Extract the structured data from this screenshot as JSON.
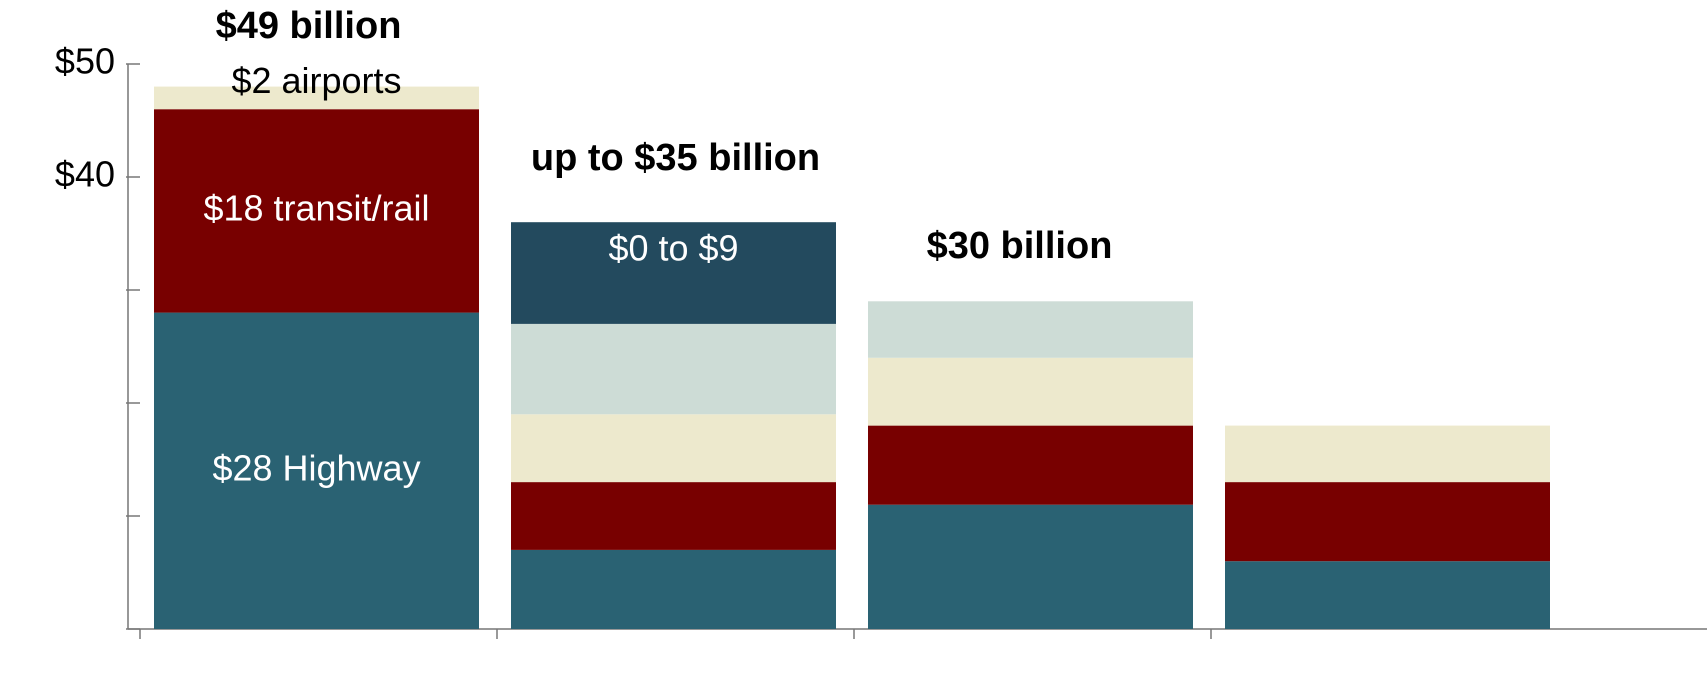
{
  "chart_data": {
    "type": "stacked-bar",
    "categories": [
      null,
      null,
      null,
      null
    ],
    "ylim": [
      0,
      50
    ],
    "yticks": [
      {
        "value": 0,
        "label": null
      },
      {
        "value": 10,
        "label": null
      },
      {
        "value": 20,
        "label": null
      },
      {
        "value": 30,
        "label": null
      },
      {
        "value": 40,
        "label": "$40"
      },
      {
        "value": 50,
        "label": "$50"
      }
    ],
    "series": [
      {
        "color": "#2a6273",
        "values": [
          28,
          7,
          11,
          6
        ],
        "value_labels": [
          "$28 Highway",
          null,
          null,
          null
        ]
      },
      {
        "color": "#780000",
        "values": [
          18,
          6,
          7,
          7
        ],
        "value_labels": [
          "$18 transit/rail",
          null,
          null,
          null
        ]
      },
      {
        "color": "#ede9cd",
        "values": [
          2,
          6,
          6,
          5
        ],
        "value_labels": [
          "$2 airports",
          null,
          null,
          null
        ]
      },
      {
        "color": "#cddcd6",
        "values": [
          null,
          8,
          5,
          null
        ]
      },
      {
        "color": "#234a5e",
        "values": [
          null,
          9,
          null,
          null
        ],
        "value_labels": [
          null,
          "$0 to $9",
          null,
          null
        ]
      }
    ],
    "annotations": [
      "$49 billion",
      "up to $35 billion",
      "$30 billion"
    ]
  }
}
